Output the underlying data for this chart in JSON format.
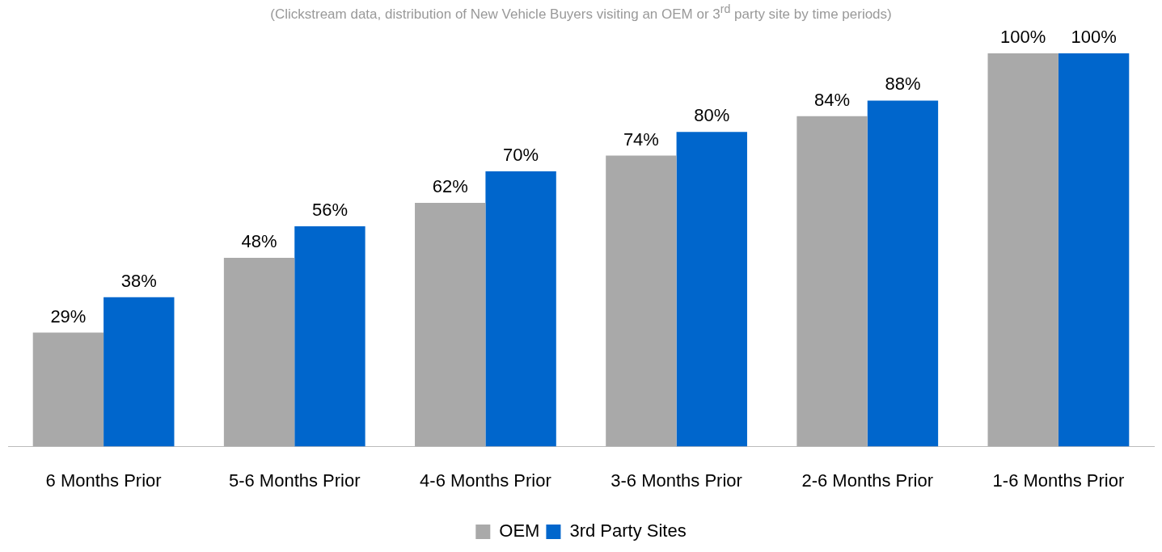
{
  "chart_data": {
    "type": "bar",
    "subtitle": "(Clickstream data, distribution of New Vehicle Buyers visiting an OEM or 3$^{rd}$ party site by time periods)",
    "categories": [
      "6 Months Prior",
      "5-6 Months Prior",
      "4-6 Months Prior",
      "3-6 Months Prior",
      "2-6 Months Prior",
      "1-6 Months Prior"
    ],
    "series": [
      {
        "name": "OEM",
        "color": "#a9a9a9",
        "values": [
          29,
          48,
          62,
          74,
          84,
          100
        ],
        "value_labels": [
          "29%",
          "48%",
          "62%",
          "74%",
          "84%",
          "100%"
        ]
      },
      {
        "name": "3rd Party Sites",
        "color": "#0066cc",
        "values": [
          38,
          56,
          70,
          80,
          88,
          100
        ],
        "value_labels": [
          "38%",
          "56%",
          "70%",
          "80%",
          "88%",
          "100%"
        ]
      }
    ],
    "legend": "bottom",
    "grid": false
  }
}
